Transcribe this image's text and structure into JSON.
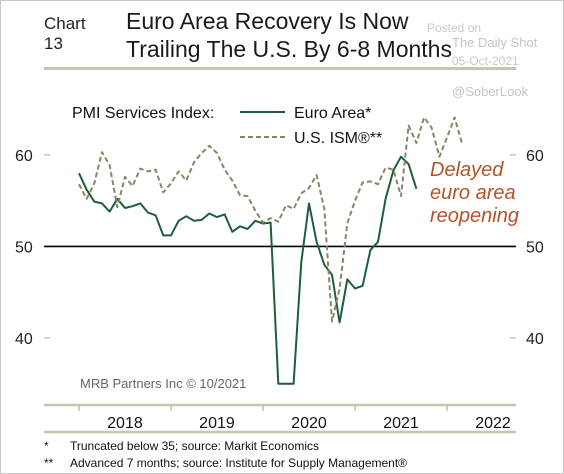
{
  "header": {
    "chart_number": "Chart 13",
    "title_line1": "Euro Area Recovery Is Now",
    "title_line2": "Trailing The U.S. By 6-8 Months"
  },
  "watermark": {
    "posted_on": "Posted on",
    "source": "The Daily Shot",
    "date": "05-Oct-2021",
    "handle": "@SoberLook"
  },
  "footnotes": [
    {
      "marker": "*",
      "text": "Truncated below 35; source: Markit Economics"
    },
    {
      "marker": "**",
      "text": "Advanced 7 months; source: Institute for Supply Management®"
    }
  ],
  "chart_data": {
    "type": "line",
    "legend_title": "PMI Services Index:",
    "legend_placement": "top-left",
    "annotation": "Delayed\neuro area\nreopening",
    "credit": "MRB Partners Inc © 10/2021",
    "y_ticks": [
      40,
      50,
      60
    ],
    "ylim": [
      33,
      66
    ],
    "xlim": [
      2017.62,
      2022.75
    ],
    "x_ticks": [
      2018,
      2019,
      2020,
      2021,
      2022
    ],
    "x_tick_labels": [
      "2018",
      "2019",
      "2020",
      "2021",
      "2022"
    ],
    "reference_line": 50,
    "colors": {
      "euro": "#1d5e3c",
      "us": "#8c8466",
      "annotation": "#b4532a",
      "axis": "#c9c3b0"
    },
    "series": [
      {
        "name": "Euro Area*",
        "style": "solid",
        "color": "#1d5e3c",
        "x": [
          2018.0,
          2018.083,
          2018.167,
          2018.25,
          2018.333,
          2018.417,
          2018.5,
          2018.583,
          2018.667,
          2018.75,
          2018.833,
          2018.917,
          2019.0,
          2019.083,
          2019.167,
          2019.25,
          2019.333,
          2019.417,
          2019.5,
          2019.583,
          2019.667,
          2019.75,
          2019.833,
          2019.917,
          2020.0,
          2020.083,
          2020.167,
          2020.25,
          2020.333,
          2020.417,
          2020.5,
          2020.583,
          2020.667,
          2020.75,
          2020.833,
          2020.917,
          2021.0,
          2021.083,
          2021.167,
          2021.25,
          2021.333,
          2021.417,
          2021.5,
          2021.583,
          2021.667
        ],
        "values": [
          58.0,
          56.2,
          54.9,
          54.7,
          53.8,
          55.2,
          54.2,
          54.4,
          54.7,
          53.7,
          53.4,
          51.2,
          51.2,
          52.8,
          53.3,
          52.8,
          52.9,
          53.6,
          53.2,
          53.5,
          51.6,
          52.2,
          51.9,
          52.8,
          52.5,
          52.6,
          35.0,
          35.0,
          35.0,
          48.3,
          54.7,
          50.5,
          48.0,
          46.9,
          41.7,
          46.4,
          45.4,
          45.7,
          49.6,
          50.5,
          55.2,
          58.3,
          59.8,
          59.0,
          56.3
        ]
      },
      {
        "name": "U.S. ISM®**",
        "style": "dashed",
        "color": "#8c8466",
        "x": [
          2018.0,
          2018.083,
          2018.167,
          2018.25,
          2018.333,
          2018.417,
          2018.5,
          2018.583,
          2018.667,
          2018.75,
          2018.833,
          2018.917,
          2019.0,
          2019.083,
          2019.167,
          2019.25,
          2019.333,
          2019.417,
          2019.5,
          2019.583,
          2019.667,
          2019.75,
          2019.833,
          2019.917,
          2020.0,
          2020.083,
          2020.167,
          2020.25,
          2020.333,
          2020.417,
          2020.5,
          2020.583,
          2020.667,
          2020.75,
          2020.833,
          2020.917,
          2021.0,
          2021.083,
          2021.167,
          2021.25,
          2021.333,
          2021.417,
          2021.5,
          2021.583,
          2021.667,
          2021.75,
          2021.833,
          2021.917,
          2022.0,
          2022.083,
          2022.167
        ],
        "values": [
          56.8,
          55.2,
          56.9,
          60.3,
          58.9,
          54.3,
          57.6,
          56.6,
          58.5,
          58.2,
          58.4,
          55.9,
          56.9,
          58.2,
          57.2,
          59.2,
          60.2,
          61.0,
          60.2,
          58.4,
          57.2,
          55.6,
          55.5,
          53.9,
          52.6,
          53.1,
          52.7,
          54.5,
          54.1,
          55.8,
          56.4,
          57.8,
          54.1,
          41.8,
          45.4,
          52.5,
          55.0,
          57.0,
          57.1,
          56.8,
          58.6,
          58.4,
          55.5,
          63.2,
          61.3,
          64.1,
          63.0,
          59.8,
          61.9,
          64.1,
          61.1
        ]
      }
    ]
  }
}
